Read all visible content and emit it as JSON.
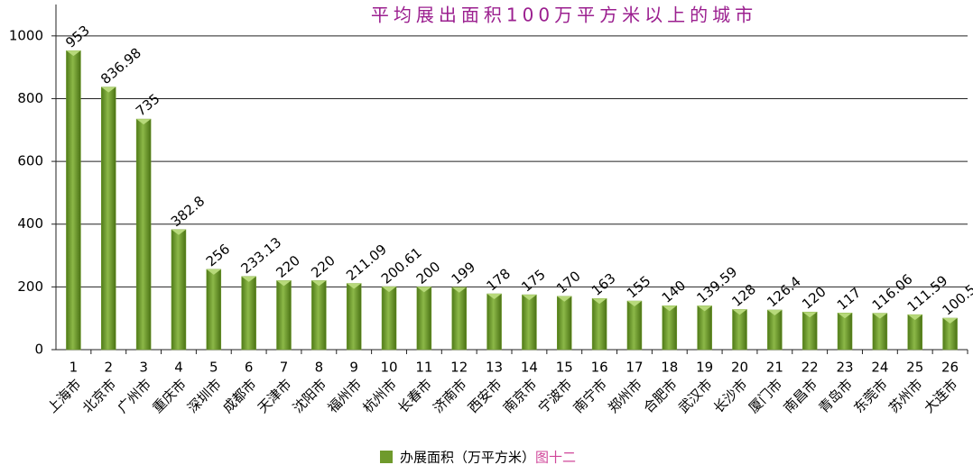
{
  "chart_data": {
    "type": "bar",
    "title": "平均展出面积100万平方米以上的城市",
    "category_numbers": [
      1,
      2,
      3,
      4,
      5,
      6,
      7,
      8,
      9,
      10,
      11,
      12,
      13,
      14,
      15,
      16,
      17,
      18,
      19,
      20,
      21,
      22,
      23,
      24,
      25,
      26
    ],
    "categories": [
      "上海市",
      "北京市",
      "广州市",
      "重庆市",
      "深圳市",
      "成都市",
      "天津市",
      "沈阳市",
      "福州市",
      "杭州市",
      "长春市",
      "济南市",
      "西安市",
      "南京市",
      "宁波市",
      "南宁市",
      "郑州市",
      "合肥市",
      "武汉市",
      "长沙市",
      "厦门市",
      "南昌市",
      "青岛市",
      "东莞市",
      "苏州市",
      "大连市"
    ],
    "series": [
      {
        "name": "办展面积（万平方米）",
        "color": "#6f9a2c",
        "values": [
          953,
          836.98,
          735,
          382.8,
          256,
          233.13,
          220,
          220,
          211.09,
          200.61,
          200,
          199,
          178,
          175,
          170,
          163,
          155,
          140,
          139.59,
          128,
          126.4,
          120,
          117,
          116.06,
          111.59,
          100.5
        ]
      }
    ],
    "annotation": "图十二",
    "ylim": [
      0,
      1100
    ],
    "yticks": [
      0,
      200,
      400,
      600,
      800,
      1000
    ],
    "grid": true,
    "legend": "bottom"
  }
}
